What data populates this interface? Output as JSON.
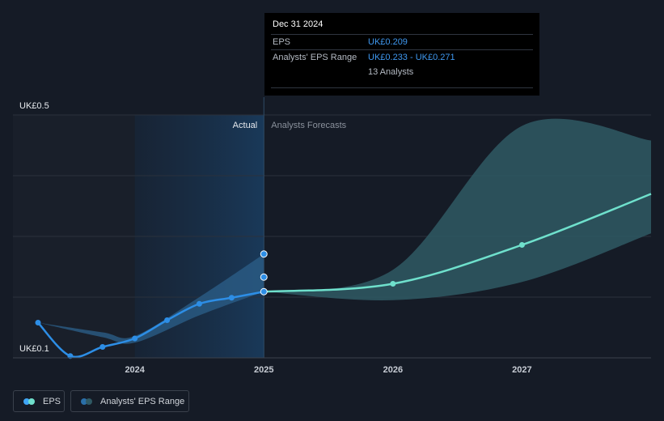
{
  "chart_data": {
    "type": "line",
    "x_ticks": [
      "2024",
      "2025",
      "2026",
      "2027"
    ],
    "y_ticks": [
      "UK£0.5",
      "UK£0.1"
    ],
    "ylim": [
      0.1,
      0.5
    ],
    "region_labels": {
      "actual": "Actual",
      "forecast": "Analysts Forecasts"
    },
    "series": [
      {
        "name": "EPS",
        "color": "#2d8ee6",
        "points": [
          {
            "x": 2023.75,
            "y": 0.158
          },
          {
            "x": 2024.0,
            "y": 0.103
          },
          {
            "x": 2024.25,
            "y": 0.118
          },
          {
            "x": 2024.5,
            "y": 0.132
          },
          {
            "x": 2024.75,
            "y": 0.162
          },
          {
            "x": 2025.0,
            "y": 0.189
          },
          {
            "x": 2025.25,
            "y": 0.199
          },
          {
            "x": 2025.5,
            "y": 0.209
          }
        ]
      },
      {
        "name": "EPS forecast",
        "color": "#6fe0cc",
        "points": [
          {
            "x": 2025.5,
            "y": 0.209
          },
          {
            "x": 2026.5,
            "y": 0.222
          },
          {
            "x": 2027.5,
            "y": 0.286
          },
          {
            "x": 2028.5,
            "y": 0.37
          }
        ]
      }
    ],
    "ranges": [
      {
        "name": "Analysts' EPS Range",
        "color": "#2f5964",
        "x": [
          2025.5,
          2026.5,
          2027.5,
          2028.5
        ],
        "low": [
          0.209,
          0.195,
          0.225,
          0.305
        ],
        "high": [
          0.209,
          0.245,
          0.482,
          0.458
        ]
      }
    ],
    "actual_band": {
      "x": [
        2023.75,
        2024.25,
        2024.5,
        2025.0,
        2025.5
      ],
      "low": [
        0.158,
        0.134,
        0.125,
        0.17,
        0.209
      ],
      "high": [
        0.158,
        0.142,
        0.136,
        0.2,
        0.271
      ]
    },
    "range_markers": [
      0.271,
      0.233
    ]
  },
  "tooltip": {
    "date": "Dec 31 2024",
    "eps_label": "EPS",
    "eps_value": "UK£0.209",
    "range_label": "Analysts' EPS Range",
    "range_value": "UK£0.233 - UK£0.271",
    "analysts": "13 Analysts"
  },
  "legend": {
    "eps_label": "EPS",
    "range_label": "Analysts' EPS Range",
    "eps_colors": [
      "#3fa5f5",
      "#6fe0cc"
    ],
    "range_colors": [
      "#2a6fa8",
      "#2f5964"
    ]
  }
}
